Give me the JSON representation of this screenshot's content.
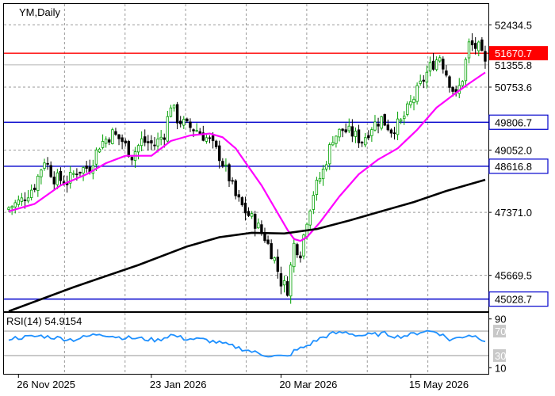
{
  "chart_data": {
    "type": "candlestick",
    "symbol_label": "YM,Daily",
    "price_axis": {
      "range": [
        44700,
        53000
      ],
      "tick_labels": [
        "52434.5",
        "50753.6",
        "49052.0",
        "47371.0",
        "45669.5"
      ]
    },
    "price_tags": [
      {
        "value": 51670.7,
        "label": "51670.7",
        "bg": "#ff0000",
        "fg": "#ffffff"
      },
      {
        "value": 51355.8,
        "label": "51355.8",
        "bg": "#ffffff",
        "fg": "#000000"
      }
    ],
    "horizontal_levels": [
      {
        "value": 51670.7,
        "color": "#ff0000",
        "label": "51670.7"
      },
      {
        "value": 49806.7,
        "color": "#0000cc",
        "label": "49806.7"
      },
      {
        "value": 48616.8,
        "color": "#0000cc",
        "label": "48616.8"
      },
      {
        "value": 45028.7,
        "color": "#0000cc",
        "label": "45028.7"
      }
    ],
    "x_axis": {
      "labels": [
        {
          "label": "26 Nov 2025",
          "bar": 3
        },
        {
          "label": "23 Jan 2026",
          "bar": 44
        },
        {
          "label": "20 Mar 2026",
          "bar": 84
        },
        {
          "label": "15 May 2026",
          "bar": 124
        }
      ]
    },
    "bars": {
      "count": 148,
      "close_anchors": [
        [
          0,
          47500
        ],
        [
          4,
          47700
        ],
        [
          8,
          48100
        ],
        [
          11,
          48800
        ],
        [
          14,
          48300
        ],
        [
          18,
          48200
        ],
        [
          21,
          48500
        ],
        [
          25,
          48600
        ],
        [
          28,
          49200
        ],
        [
          32,
          49500
        ],
        [
          35,
          49300
        ],
        [
          38,
          48900
        ],
        [
          41,
          49300
        ],
        [
          45,
          49200
        ],
        [
          48,
          49500
        ],
        [
          50,
          50300
        ],
        [
          52,
          49900
        ],
        [
          55,
          49700
        ],
        [
          58,
          49600
        ],
        [
          62,
          49300
        ],
        [
          65,
          48900
        ],
        [
          68,
          48300
        ],
        [
          70,
          47800
        ],
        [
          73,
          47400
        ],
        [
          76,
          47100
        ],
        [
          79,
          46700
        ],
        [
          82,
          46100
        ],
        [
          84,
          45500
        ],
        [
          86,
          45300
        ],
        [
          88,
          46500
        ],
        [
          90,
          46300
        ],
        [
          92,
          47200
        ],
        [
          94,
          47900
        ],
        [
          97,
          48500
        ],
        [
          100,
          49400
        ],
        [
          103,
          49600
        ],
        [
          106,
          49500
        ],
        [
          109,
          49300
        ],
        [
          112,
          49700
        ],
        [
          115,
          49900
        ],
        [
          118,
          49600
        ],
        [
          121,
          49800
        ],
        [
          124,
          50300
        ],
        [
          127,
          50800
        ],
        [
          130,
          51300
        ],
        [
          133,
          51600
        ],
        [
          136,
          50900
        ],
        [
          138,
          50500
        ],
        [
          140,
          51000
        ],
        [
          142,
          51900
        ],
        [
          145,
          51800
        ],
        [
          147,
          51350
        ]
      ],
      "up_color": "#00a000",
      "down_color": "#000000"
    },
    "moving_averages": [
      {
        "color": "#ff00ff",
        "width": 2.2,
        "points": [
          [
            0,
            47400
          ],
          [
            8,
            47600
          ],
          [
            16,
            48100
          ],
          [
            24,
            48400
          ],
          [
            30,
            48700
          ],
          [
            36,
            48900
          ],
          [
            44,
            48900
          ],
          [
            50,
            49300
          ],
          [
            56,
            49450
          ],
          [
            62,
            49500
          ],
          [
            66,
            49400
          ],
          [
            70,
            49100
          ],
          [
            74,
            48600
          ],
          [
            78,
            48100
          ],
          [
            82,
            47500
          ],
          [
            86,
            46900
          ],
          [
            88,
            46650
          ],
          [
            90,
            46600
          ],
          [
            92,
            46700
          ],
          [
            96,
            47100
          ],
          [
            102,
            47800
          ],
          [
            108,
            48400
          ],
          [
            114,
            48800
          ],
          [
            120,
            49100
          ],
          [
            126,
            49600
          ],
          [
            132,
            50200
          ],
          [
            138,
            50600
          ],
          [
            142,
            50850
          ],
          [
            147,
            51150
          ]
        ]
      },
      {
        "color": "#000000",
        "width": 2.6,
        "points": [
          [
            0,
            44700
          ],
          [
            20,
            45350
          ],
          [
            40,
            45950
          ],
          [
            55,
            46450
          ],
          [
            65,
            46700
          ],
          [
            75,
            46820
          ],
          [
            85,
            46800
          ],
          [
            95,
            46920
          ],
          [
            105,
            47150
          ],
          [
            115,
            47400
          ],
          [
            125,
            47650
          ],
          [
            135,
            47950
          ],
          [
            147,
            48250
          ]
        ]
      }
    ],
    "rsi": {
      "label": "RSI(14) 54.9154",
      "levels": [
        {
          "value": 70,
          "label": "70"
        },
        {
          "value": 30,
          "label": "30"
        }
      ],
      "axis_labels": [
        {
          "value": 90,
          "label": "90"
        },
        {
          "value": 10,
          "label": "10"
        }
      ],
      "range": [
        0,
        100
      ],
      "color": "#1e90ff",
      "anchors": [
        [
          0,
          58
        ],
        [
          10,
          62
        ],
        [
          20,
          56
        ],
        [
          28,
          66
        ],
        [
          34,
          60
        ],
        [
          40,
          58
        ],
        [
          46,
          55
        ],
        [
          50,
          64
        ],
        [
          54,
          58
        ],
        [
          60,
          56
        ],
        [
          64,
          52
        ],
        [
          70,
          44
        ],
        [
          74,
          38
        ],
        [
          78,
          32
        ],
        [
          82,
          29
        ],
        [
          86,
          28
        ],
        [
          88,
          37
        ],
        [
          92,
          46
        ],
        [
          96,
          58
        ],
        [
          100,
          66
        ],
        [
          104,
          68
        ],
        [
          108,
          63
        ],
        [
          112,
          64
        ],
        [
          116,
          66
        ],
        [
          120,
          61
        ],
        [
          124,
          64
        ],
        [
          128,
          70
        ],
        [
          132,
          69
        ],
        [
          134,
          63
        ],
        [
          136,
          56
        ],
        [
          138,
          58
        ],
        [
          142,
          64
        ],
        [
          145,
          60
        ],
        [
          147,
          55
        ]
      ]
    },
    "colors": {
      "grid": "#9a9a9a",
      "axis": "#000000",
      "level_line_gray": "#b4b4b4"
    }
  }
}
